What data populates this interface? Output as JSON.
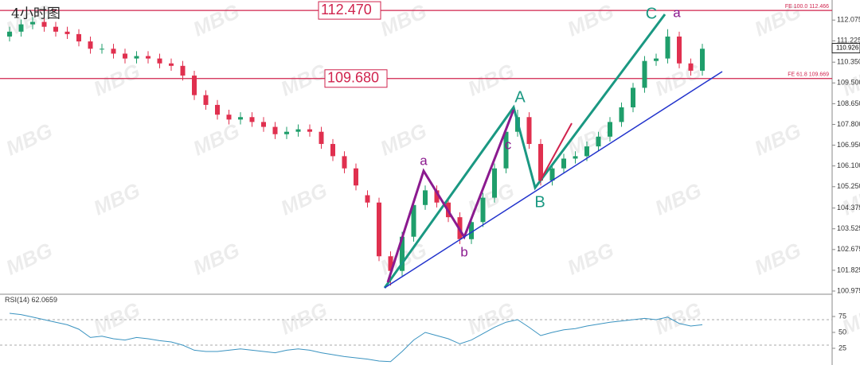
{
  "chart_data": [
    {
      "type": "candlestick",
      "title": "4小时图",
      "open": [
        111.4,
        111.6,
        111.9,
        112.0,
        111.8,
        111.6,
        111.5,
        111.2,
        110.9,
        110.9,
        110.7,
        110.5,
        110.6,
        110.5,
        110.3,
        110.2,
        109.8,
        109.0,
        108.6,
        108.2,
        108.0,
        108.1,
        107.9,
        107.7,
        107.4,
        107.5,
        107.6,
        107.5,
        107.0,
        106.5,
        106.0,
        104.9,
        104.6,
        102.4,
        101.8,
        103.2,
        104.5,
        105.1,
        104.6,
        104.0,
        103.1,
        103.8,
        104.8,
        106.0,
        107.5,
        108.1,
        107.0,
        105.5,
        106.0,
        106.4,
        106.5,
        106.9,
        107.3,
        107.9,
        108.5,
        109.3,
        110.4,
        110.5,
        111.4,
        110.3,
        110.0
      ],
      "high": [
        111.8,
        112.1,
        112.2,
        112.2,
        112.0,
        111.8,
        111.7,
        111.4,
        111.1,
        111.1,
        110.9,
        110.8,
        110.8,
        110.7,
        110.5,
        110.4,
        110.0,
        109.2,
        108.8,
        108.4,
        108.3,
        108.3,
        108.1,
        107.9,
        107.7,
        107.8,
        107.8,
        107.7,
        107.2,
        106.7,
        106.2,
        105.1,
        104.8,
        102.6,
        103.4,
        104.7,
        105.3,
        105.3,
        104.8,
        104.2,
        104.0,
        105.0,
        106.2,
        107.7,
        108.4,
        108.3,
        107.2,
        106.2,
        106.6,
        106.7,
        107.1,
        107.5,
        108.1,
        108.7,
        109.5,
        110.6,
        110.7,
        111.7,
        111.6,
        110.5,
        111.1
      ],
      "low": [
        111.2,
        111.4,
        111.7,
        111.6,
        111.4,
        111.3,
        111.0,
        110.7,
        110.7,
        110.5,
        110.3,
        110.3,
        110.3,
        110.1,
        110.0,
        109.6,
        108.8,
        108.4,
        108.0,
        107.8,
        107.8,
        107.7,
        107.5,
        107.2,
        107.2,
        107.3,
        107.3,
        106.8,
        106.3,
        105.8,
        105.1,
        104.4,
        102.2,
        101.2,
        101.6,
        103.0,
        104.3,
        104.4,
        103.8,
        102.9,
        102.9,
        103.6,
        104.6,
        105.8,
        107.3,
        106.8,
        105.3,
        105.3,
        105.8,
        106.2,
        106.3,
        106.7,
        107.1,
        107.7,
        108.3,
        109.1,
        110.2,
        110.3,
        110.1,
        109.8,
        109.8
      ],
      "close": [
        111.6,
        111.9,
        112.0,
        111.8,
        111.6,
        111.5,
        111.2,
        110.9,
        110.9,
        110.7,
        110.5,
        110.6,
        110.5,
        110.3,
        110.2,
        109.8,
        109.0,
        108.6,
        108.2,
        108.0,
        108.1,
        107.9,
        107.7,
        107.4,
        107.5,
        107.6,
        107.5,
        107.0,
        106.5,
        106.0,
        105.3,
        104.6,
        102.4,
        101.8,
        103.2,
        104.5,
        105.1,
        104.6,
        104.0,
        103.1,
        103.8,
        104.8,
        106.0,
        107.5,
        108.1,
        107.0,
        105.5,
        106.0,
        106.4,
        106.5,
        106.9,
        107.3,
        107.9,
        108.5,
        109.3,
        110.4,
        110.5,
        111.4,
        110.3,
        110.0,
        110.9
      ],
      "up_color": "#1f9e6b",
      "down_color": "#e0304f",
      "ylim": [
        100.845,
        112.897
      ],
      "yticks": [
        112.075,
        111.225,
        {
          "value": 110.35,
          "label": "110.350"
        },
        {
          "value": 109.5,
          "label": "109.500"
        },
        {
          "value": 108.65,
          "label": "108.650"
        },
        {
          "value": 107.8,
          "label": "107.800"
        },
        {
          "value": 106.95,
          "label": "106.950"
        },
        {
          "value": 106.1,
          "label": "106.100"
        },
        {
          "value": 105.25,
          "label": "105.250"
        },
        104.375,
        103.525,
        102.675,
        101.825,
        100.975
      ],
      "levels": [
        {
          "value": 112.47,
          "value_label": "112.470",
          "note": "FE 100.0 112.466",
          "color": "#d0234d"
        },
        {
          "value": 109.68,
          "value_label": "109.680",
          "note": "FE 61.8 109.669",
          "color": "#d0234d"
        }
      ],
      "current_price": 110.926,
      "annotations": [
        "a",
        "b",
        "c",
        "A",
        "B",
        "C",
        "a"
      ]
    },
    {
      "type": "line",
      "label": "RSI(14)",
      "current": 62.0659,
      "color": "#3a93c0",
      "values": [
        80,
        78,
        74,
        70,
        66,
        62,
        55,
        42,
        44,
        40,
        38,
        42,
        40,
        37,
        35,
        30,
        22,
        20,
        20,
        22,
        24,
        22,
        20,
        18,
        22,
        24,
        22,
        18,
        15,
        12,
        10,
        8,
        5,
        4,
        20,
        38,
        50,
        45,
        40,
        32,
        38,
        48,
        58,
        66,
        70,
        58,
        45,
        50,
        54,
        56,
        60,
        63,
        66,
        68,
        70,
        72,
        70,
        74,
        64,
        60,
        62
      ],
      "ylim": [
        0,
        100
      ],
      "yticks": [
        75,
        50,
        25
      ],
      "levels": [
        70,
        30
      ]
    }
  ],
  "watermark": "MBG"
}
